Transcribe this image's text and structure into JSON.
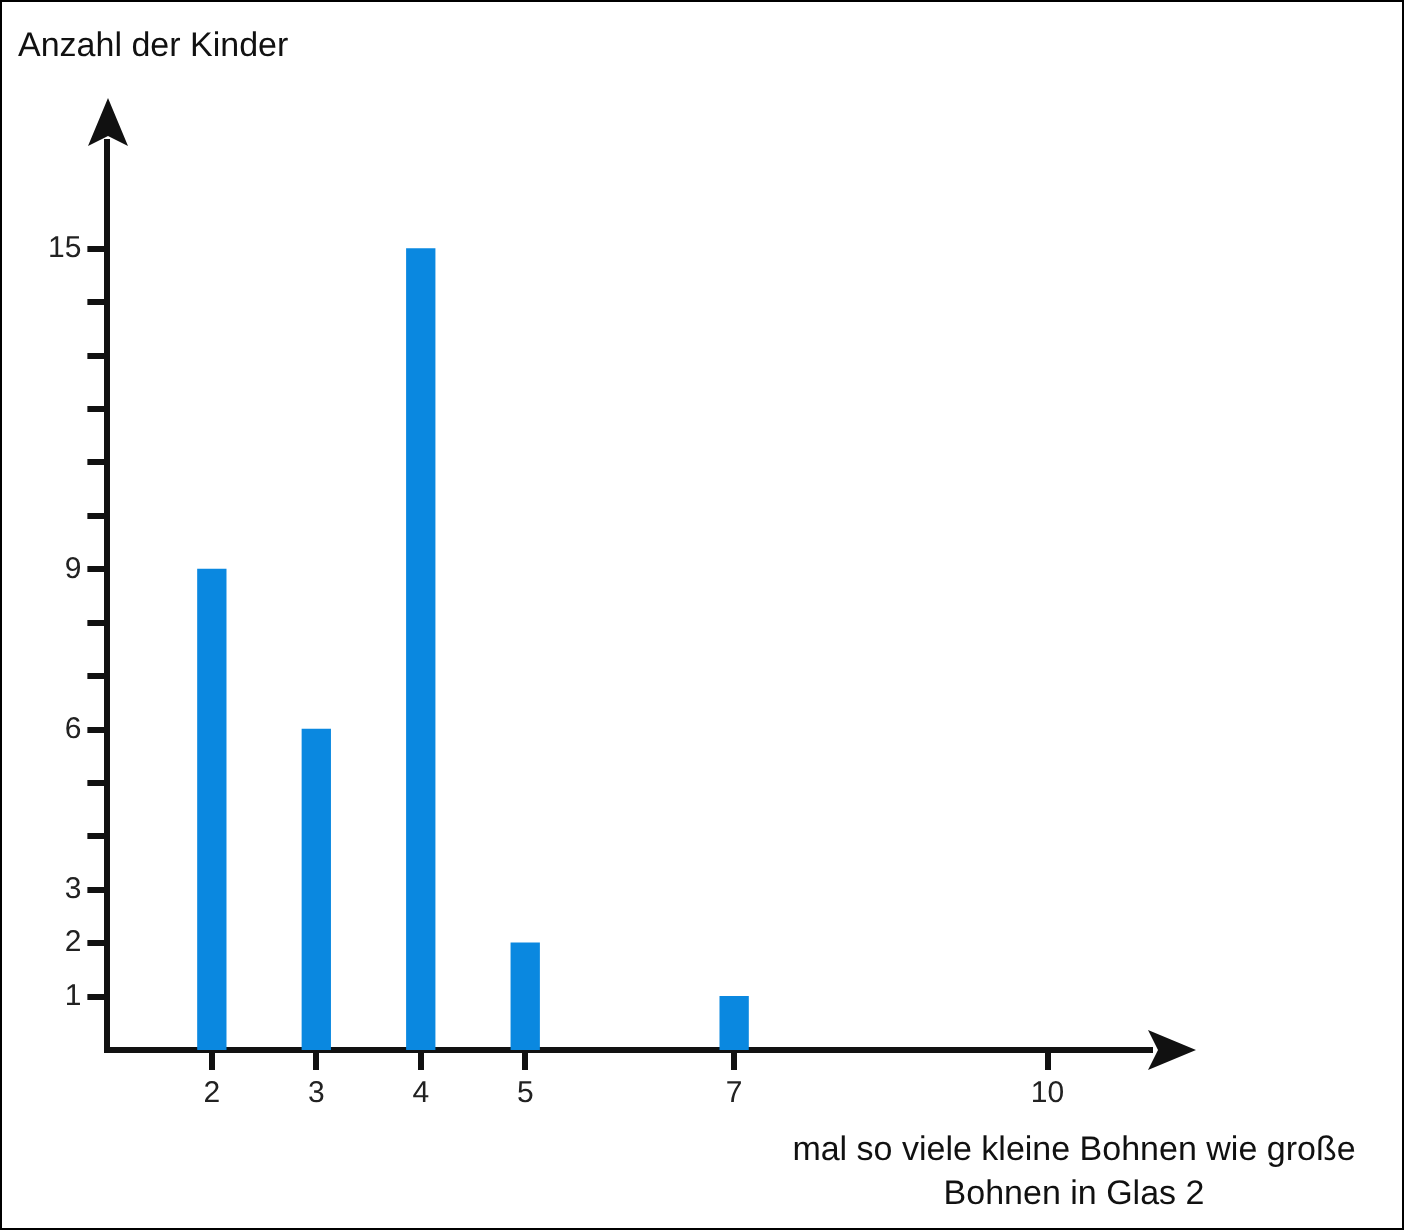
{
  "chart_data": {
    "type": "bar",
    "ylabel": "Anzahl der Kinder",
    "xlabel": "mal so viele kleine Bohnen wie große Bohnen in Glas 2",
    "x": [
      2,
      3,
      4,
      5,
      7
    ],
    "values": [
      9,
      6,
      15,
      2,
      1
    ],
    "color": "#0a88e0",
    "xlim": [
      1,
      11
    ],
    "xticks": [
      2,
      3,
      4,
      5,
      7,
      10
    ],
    "ylim": [
      0,
      17
    ],
    "yticks": [
      1,
      2,
      3,
      {
        "value": 4,
        "label": null
      },
      {
        "value": 5,
        "label": null
      },
      6,
      {
        "value": 7,
        "label": null
      },
      {
        "value": 8,
        "label": null
      },
      9,
      {
        "value": 10,
        "label": null
      },
      {
        "value": 11,
        "label": null
      },
      {
        "value": 12,
        "label": null
      },
      {
        "value": 13,
        "label": null
      },
      {
        "value": 14,
        "label": null
      },
      15
    ],
    "grid": false,
    "legend": false
  }
}
